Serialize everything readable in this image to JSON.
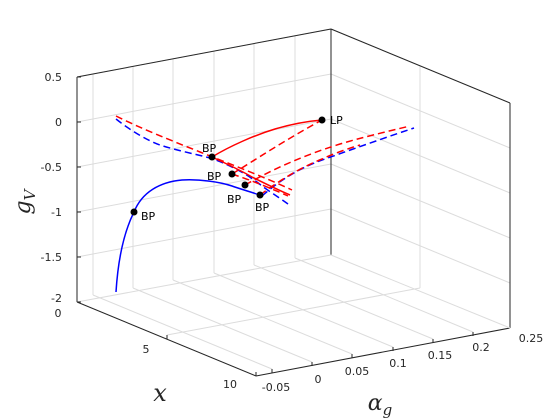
{
  "chart_data": {
    "type": "line3d",
    "title": "",
    "axes": {
      "x": {
        "label_main": "α",
        "label_sub": "g",
        "ticks": [
          "-0.05",
          "0",
          "0.05",
          "0.1",
          "0.15",
          "0.2",
          "0.25"
        ]
      },
      "y": {
        "label": "x",
        "ticks": [
          "0",
          "5",
          "10"
        ]
      },
      "z": {
        "label_main": "g",
        "label_sub": "V",
        "ticks": [
          "0.5",
          "0",
          "-0.5",
          "-1",
          "-1.5",
          "-2"
        ]
      }
    },
    "grid": true,
    "colors": {
      "stable": "#0000ff",
      "unstable": "#ff0000",
      "points": "#000000",
      "box": "#262626",
      "grid": "#dcdcdc"
    },
    "series": [
      {
        "color": "blue",
        "style": "solid",
        "description": "lower branch"
      },
      {
        "color": "blue",
        "style": "dashed",
        "description": "upper branch"
      },
      {
        "color": "red",
        "style": "solid",
        "description": "branch between BP and LP"
      },
      {
        "color": "red",
        "style": "dashed",
        "description": "secondary branches"
      }
    ],
    "points": [
      {
        "label": "LP"
      },
      {
        "label": "BP"
      },
      {
        "label": "BP"
      },
      {
        "label": "BP"
      },
      {
        "label": "BP"
      },
      {
        "label": "BP"
      }
    ]
  }
}
